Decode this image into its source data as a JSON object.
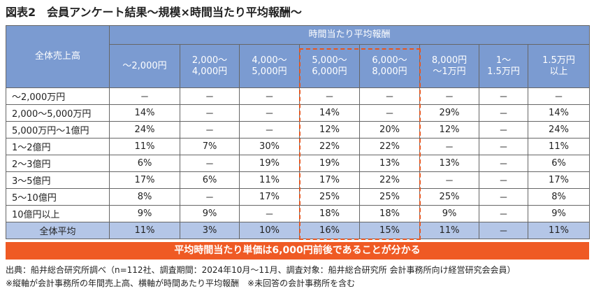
{
  "title": "図表2　会員アンケート結果～規模×時間当たり平均報酬～",
  "table": {
    "row_header_label": "全体売上高",
    "group_label": "時間当たり平均報酬",
    "columns": [
      "～2,000円",
      "2,000～\n4,000円",
      "4,000～\n5,000円",
      "5,000～\n6,000円",
      "6,000～\n8,000円",
      "8,000円\n～1万円",
      "1～\n1.5万円",
      "1.5万円\n以上"
    ],
    "rows": [
      {
        "label": "～2,000万円",
        "values": [
          "－",
          "－",
          "－",
          "－",
          "－",
          "－",
          "－",
          "－"
        ]
      },
      {
        "label": "2,000～5,000万円",
        "values": [
          "14%",
          "－",
          "－",
          "14%",
          "－",
          "29%",
          "－",
          "14%"
        ]
      },
      {
        "label": "5,000万円～1億円",
        "values": [
          "24%",
          "－",
          "－",
          "12%",
          "20%",
          "12%",
          "－",
          "24%"
        ]
      },
      {
        "label": "1～2億円",
        "values": [
          "11%",
          "7%",
          "30%",
          "22%",
          "22%",
          "－",
          "－",
          "11%"
        ]
      },
      {
        "label": "2～3億円",
        "values": [
          "6%",
          "－",
          "19%",
          "19%",
          "13%",
          "13%",
          "－",
          "6%"
        ]
      },
      {
        "label": "3～5億円",
        "values": [
          "17%",
          "6%",
          "11%",
          "17%",
          "22%",
          "－",
          "－",
          "17%"
        ]
      },
      {
        "label": "5～10億円",
        "values": [
          "8%",
          "－",
          "17%",
          "25%",
          "25%",
          "25%",
          "－",
          "8%"
        ]
      },
      {
        "label": "10億円以上",
        "values": [
          "9%",
          "9%",
          "－",
          "18%",
          "18%",
          "9%",
          "－",
          "9%"
        ]
      },
      {
        "label": "全体平均",
        "values": [
          "11%",
          "3%",
          "10%",
          "16%",
          "15%",
          "11%",
          "－",
          "11%"
        ]
      }
    ]
  },
  "banner": "平均時間当たり単価は6,000円前後であることが分かる",
  "notes": [
    "出典：船井総合研究所調べ（n=112社、調査期間：2024年10月～11月、調査対象：船井総合研究所 会計事務所向け経営研究会会員）",
    "※縦軸が会計事務所の年間売上高、横軸が時間あたり平均報酬　※未回答の会計事務所を含む"
  ],
  "colors": {
    "header": "#7b9bd1",
    "average_row": "#b4c6e7",
    "accent": "#ef5a24"
  }
}
